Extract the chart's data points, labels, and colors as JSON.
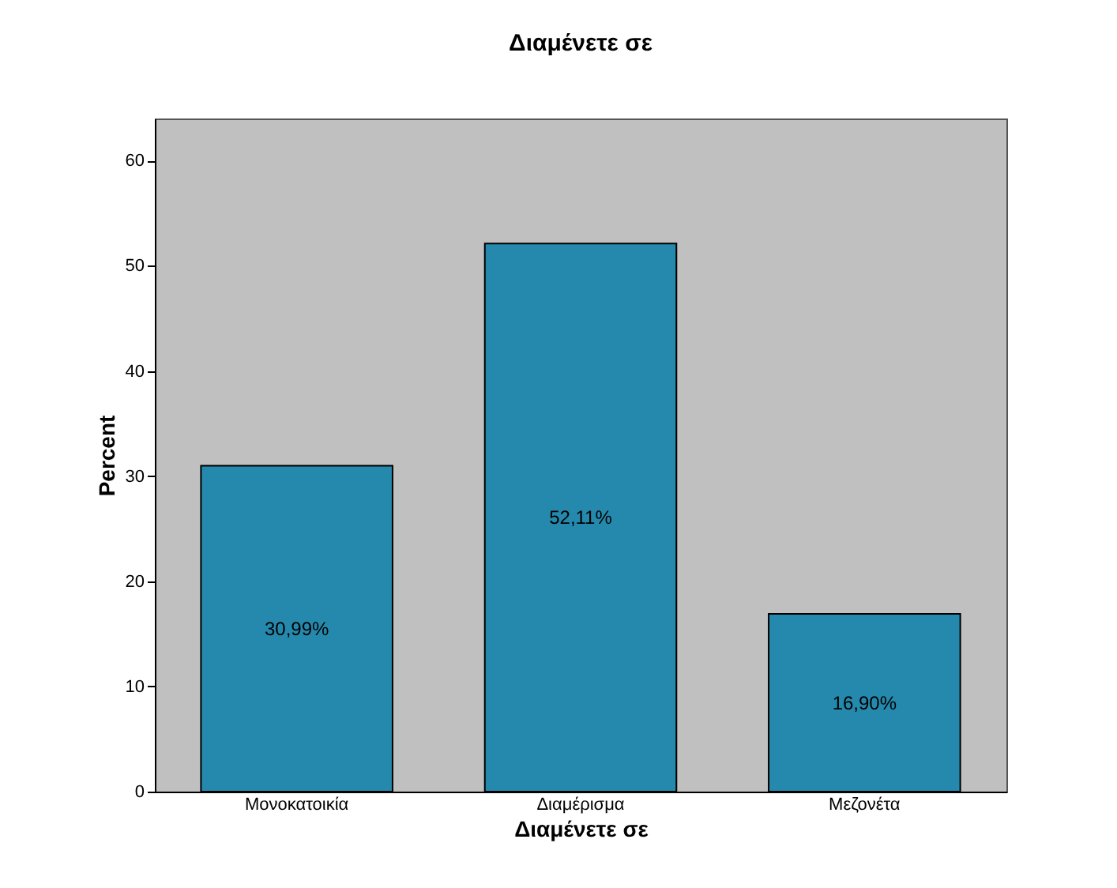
{
  "chart_data": {
    "type": "bar",
    "title": "Διαμένετε σε",
    "xlabel": "Διαμένετε σε",
    "ylabel": "Percent",
    "categories": [
      "Μονοκατοικία",
      "Διαμέρισμα",
      "Μεζονέτα"
    ],
    "values": [
      30.99,
      52.11,
      16.9
    ],
    "value_labels": [
      "30,99%",
      "52,11%",
      "16,90%"
    ],
    "color": "#2589ad",
    "ylim": [
      0,
      64
    ],
    "yticks": [
      0,
      10,
      20,
      30,
      40,
      50,
      60
    ],
    "grid": false
  }
}
